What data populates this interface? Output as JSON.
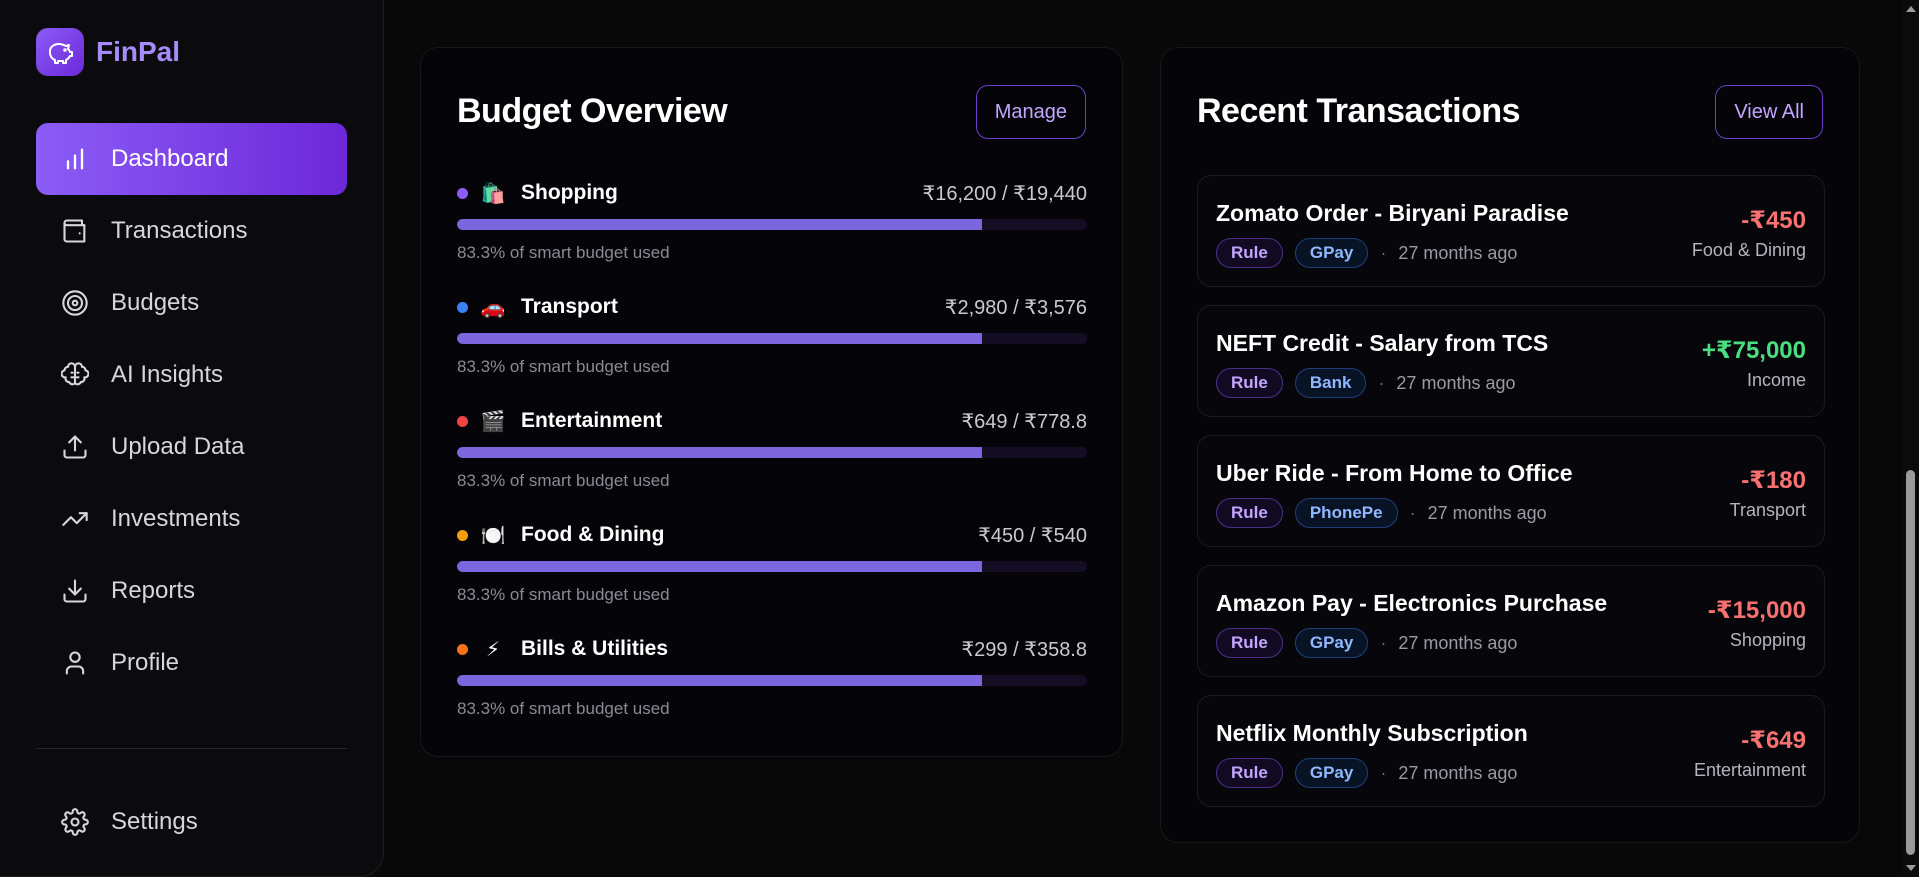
{
  "brand": {
    "name": "FinPal",
    "logo_icon": "piggy-bank-icon",
    "accent": "#8b5cf6"
  },
  "sidebar": {
    "items": [
      {
        "label": "Dashboard",
        "icon": "bar-chart-icon",
        "active": true
      },
      {
        "label": "Transactions",
        "icon": "wallet-icon",
        "active": false
      },
      {
        "label": "Budgets",
        "icon": "target-icon",
        "active": false
      },
      {
        "label": "AI Insights",
        "icon": "brain-icon",
        "active": false
      },
      {
        "label": "Upload Data",
        "icon": "upload-icon",
        "active": false
      },
      {
        "label": "Investments",
        "icon": "trending-up-icon",
        "active": false
      },
      {
        "label": "Reports",
        "icon": "download-icon",
        "active": false
      },
      {
        "label": "Profile",
        "icon": "user-icon",
        "active": false
      }
    ],
    "settings": {
      "label": "Settings",
      "icon": "gear-icon"
    }
  },
  "budget": {
    "title": "Budget Overview",
    "button": "Manage",
    "items": [
      {
        "name": "Shopping",
        "emoji": "🛍️",
        "dot_color": "#8b5cf6",
        "amount": "₹16,200 / ₹19,440",
        "used_fraction": 0.833,
        "note": "83.3% of smart budget used"
      },
      {
        "name": "Transport",
        "emoji": "🚗",
        "dot_color": "#3b82f6",
        "amount": "₹2,980 / ₹3,576",
        "used_fraction": 0.833,
        "note": "83.3% of smart budget used"
      },
      {
        "name": "Entertainment",
        "emoji": "🎬",
        "dot_color": "#ef4444",
        "amount": "₹649 / ₹778.8",
        "used_fraction": 0.833,
        "note": "83.3% of smart budget used"
      },
      {
        "name": "Food & Dining",
        "emoji": "🍽️",
        "dot_color": "#f59e0b",
        "amount": "₹450 / ₹540",
        "used_fraction": 0.833,
        "note": "83.3% of smart budget used"
      },
      {
        "name": "Bills & Utilities",
        "emoji": "⚡",
        "dot_color": "#f97316",
        "amount": "₹299 / ₹358.8",
        "used_fraction": 0.833,
        "note": "83.3% of smart budget used"
      }
    ]
  },
  "transactions": {
    "title": "Recent Transactions",
    "button": "View All",
    "items": [
      {
        "title": "Zomato Order - Biryani Paradise",
        "tag_rule": "Rule",
        "tag_channel": "GPay",
        "time": "27 months ago",
        "amount": "-₹450",
        "type": "neg",
        "category": "Food & Dining"
      },
      {
        "title": "NEFT Credit - Salary from TCS",
        "tag_rule": "Rule",
        "tag_channel": "Bank",
        "time": "27 months ago",
        "amount": "+₹75,000",
        "type": "pos",
        "category": "Income"
      },
      {
        "title": "Uber Ride - From Home to Office",
        "tag_rule": "Rule",
        "tag_channel": "PhonePe",
        "time": "27 months ago",
        "amount": "-₹180",
        "type": "neg",
        "category": "Transport"
      },
      {
        "title": "Amazon Pay - Electronics Purchase",
        "tag_rule": "Rule",
        "tag_channel": "GPay",
        "time": "27 months ago",
        "amount": "-₹15,000",
        "type": "neg",
        "category": "Shopping"
      },
      {
        "title": "Netflix Monthly Subscription",
        "tag_rule": "Rule",
        "tag_channel": "GPay",
        "time": "27 months ago",
        "amount": "-₹649",
        "type": "neg",
        "category": "Entertainment"
      }
    ]
  }
}
